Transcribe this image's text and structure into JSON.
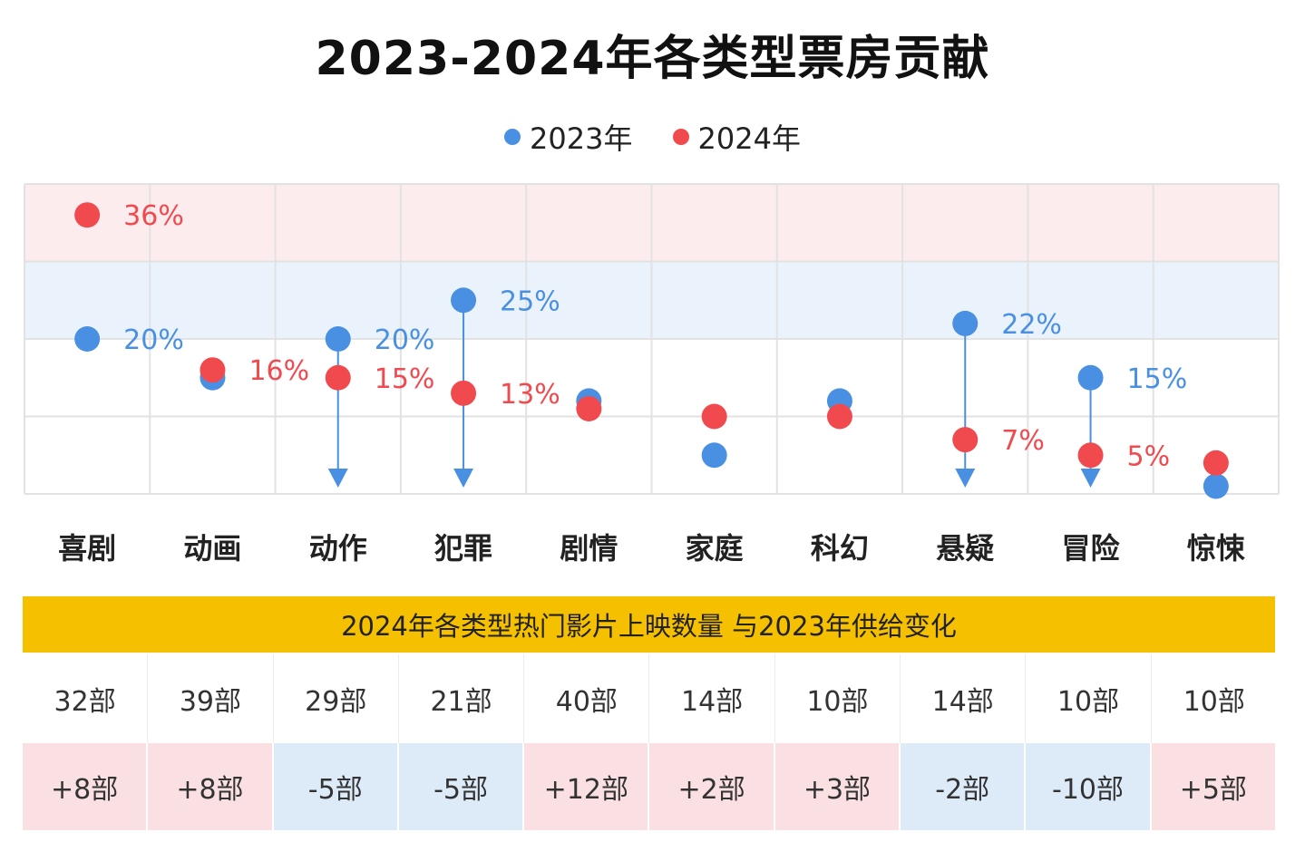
{
  "title": "2023-2024年各类型票房贡献",
  "legend": [
    {
      "label": "2023年",
      "color": "#4a90e2"
    },
    {
      "label": "2024年",
      "color": "#f04a4f"
    }
  ],
  "chart_data": {
    "type": "scatter",
    "title": "2023-2024年各类型票房贡献",
    "categories": [
      "喜剧",
      "动画",
      "动作",
      "犯罪",
      "剧情",
      "家庭",
      "科幻",
      "悬疑",
      "冒险",
      "惊悚"
    ],
    "series": [
      {
        "name": "2023年",
        "color": "#4a90e2",
        "values": [
          20,
          15,
          20,
          25,
          12,
          5,
          12,
          22,
          15,
          1
        ]
      },
      {
        "name": "2024年",
        "color": "#f04a4f",
        "values": [
          36,
          16,
          15,
          13,
          11,
          10,
          10,
          7,
          5,
          4
        ]
      }
    ],
    "data_labels": [
      {
        "category": "喜剧",
        "series": "2024年",
        "text": "36%"
      },
      {
        "category": "喜剧",
        "series": "2023年",
        "text": "20%"
      },
      {
        "category": "动画",
        "series": "2024年",
        "text": "16%"
      },
      {
        "category": "动作",
        "series": "2023年",
        "text": "20%"
      },
      {
        "category": "动作",
        "series": "2024年",
        "text": "15%"
      },
      {
        "category": "犯罪",
        "series": "2023年",
        "text": "25%"
      },
      {
        "category": "犯罪",
        "series": "2024年",
        "text": "13%"
      },
      {
        "category": "悬疑",
        "series": "2023年",
        "text": "22%"
      },
      {
        "category": "悬疑",
        "series": "2024年",
        "text": "7%"
      },
      {
        "category": "冒险",
        "series": "2023年",
        "text": "15%"
      },
      {
        "category": "冒险",
        "series": "2024年",
        "text": "5%"
      }
    ],
    "declines": [
      "动作",
      "犯罪",
      "悬疑",
      "冒险"
    ],
    "ylim": [
      0,
      40
    ],
    "bands": [
      {
        "from": 30,
        "to": 40,
        "color": "#fdeced"
      },
      {
        "from": 20,
        "to": 30,
        "color": "#eaf3fc"
      }
    ],
    "grid": true,
    "xlabel": "",
    "ylabel": ""
  },
  "supply": {
    "banner": "2024年各类型热门影片上映数量 与2023年供给变化",
    "counts": [
      "32部",
      "39部",
      "29部",
      "21部",
      "40部",
      "14部",
      "10部",
      "14部",
      "10部",
      "10部"
    ],
    "changes": [
      "+8部",
      "+8部",
      "-5部",
      "-5部",
      "+12部",
      "+2部",
      "+3部",
      "-2部",
      "-10部",
      "+5部"
    ]
  }
}
